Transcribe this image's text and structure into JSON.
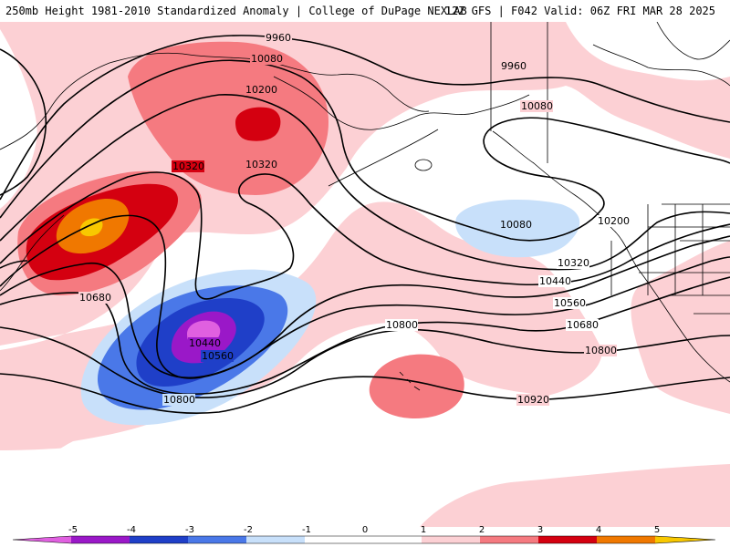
{
  "header": {
    "left_title": "250mb Height 1981-2010 Standardized Anomaly | College of DuPage NEXLAB",
    "right_title": "12Z GFS | F042 Valid: 06Z FRI MAR 28 2025"
  },
  "colors": {
    "neg5": "#e060e0",
    "neg4": "#9a18c8",
    "neg3": "#1f3fc8",
    "neg2": "#4a78e8",
    "neg1": "#c8e0fa",
    "zero": "#ffffff",
    "pos1": "#fcd0d4",
    "pos2": "#f57a80",
    "pos3": "#d40010",
    "pos4": "#f07800",
    "pos5": "#f8c800"
  },
  "contour_labels": [
    {
      "id": "9960a",
      "text": "9960"
    },
    {
      "id": "9960b",
      "text": "9960"
    },
    {
      "id": "10080a",
      "text": "10080"
    },
    {
      "id": "10080b",
      "text": "10080"
    },
    {
      "id": "10080c",
      "text": "10080"
    },
    {
      "id": "10200a",
      "text": "10200"
    },
    {
      "id": "10200b",
      "text": "10200"
    },
    {
      "id": "10320a",
      "text": "10320"
    },
    {
      "id": "10320b",
      "text": "10320"
    },
    {
      "id": "10320c",
      "text": "10320"
    },
    {
      "id": "10440a",
      "text": "10440"
    },
    {
      "id": "10440b",
      "text": "10440"
    },
    {
      "id": "10560a",
      "text": "10560"
    },
    {
      "id": "10560b",
      "text": "10560"
    },
    {
      "id": "10680a",
      "text": "10680"
    },
    {
      "id": "10680b",
      "text": "10680"
    },
    {
      "id": "10800a",
      "text": "10800"
    },
    {
      "id": "10800b",
      "text": "10800"
    },
    {
      "id": "10800c",
      "text": "10800"
    },
    {
      "id": "10920a",
      "text": "10920"
    }
  ],
  "colorbar": {
    "ticks": [
      "-5",
      "-4",
      "-3",
      "-2",
      "-1",
      "0",
      "1",
      "2",
      "3",
      "4",
      "5"
    ]
  }
}
